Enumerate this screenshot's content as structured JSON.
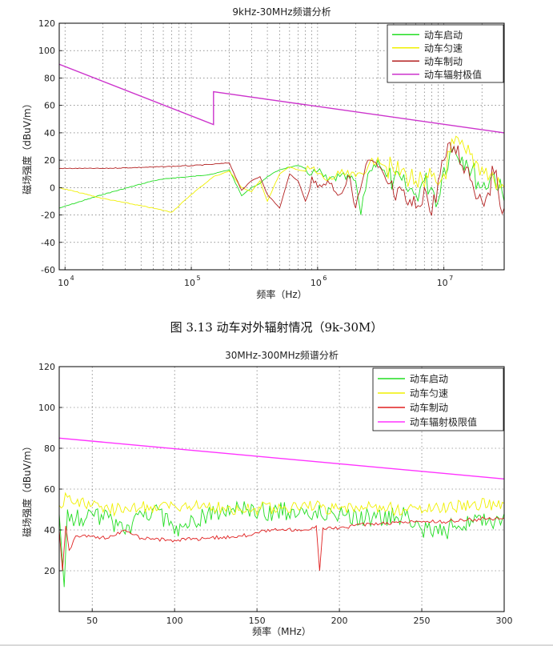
{
  "caption": "图 3.13 动车对外辐射情况（9k-30M）",
  "chart_data": [
    {
      "type": "line",
      "title": "9kHz-30MHz频谱分析",
      "xlabel": "频率（Hz）",
      "ylabel": "磁场强度（dBuV/m）",
      "xscale": "log",
      "xlim": [
        9000,
        30000000
      ],
      "ylim": [
        -60,
        120
      ],
      "yticks": [
        -60,
        -40,
        -20,
        0,
        20,
        40,
        60,
        80,
        100,
        120
      ],
      "xticks": [
        {
          "value": 10000,
          "base": "10",
          "exp": "4"
        },
        {
          "value": 100000,
          "base": "10",
          "exp": "5"
        },
        {
          "value": 1000000,
          "base": "10",
          "exp": "6"
        },
        {
          "value": 10000000,
          "base": "10",
          "exp": "7"
        }
      ],
      "grid": true,
      "legend_position": "top-right",
      "colors": {
        "start": "#22dd22",
        "uniform": "#f0f000",
        "brake": "#b32020",
        "limit": "#cc33cc"
      },
      "series": [
        {
          "name": "动车启动",
          "key": "start",
          "x": [
            9000,
            20000,
            50000,
            70000,
            100000,
            150000,
            200000,
            250000,
            300000,
            350000,
            400000,
            500000,
            600000,
            700000,
            800000,
            900000,
            1000000,
            1200000,
            1500000,
            2000000,
            2200000,
            2500000,
            3000000,
            3500000,
            4000000,
            5000000,
            6000000,
            7000000,
            8000000,
            9000000,
            10000000,
            12000000,
            15000000,
            20000000,
            25000000,
            30000000
          ],
          "y": [
            -15,
            -5,
            5,
            7,
            8,
            10,
            13,
            -6,
            0,
            3,
            8,
            13,
            15,
            16,
            14,
            10,
            12,
            5,
            8,
            5,
            -20,
            10,
            20,
            8,
            5,
            0,
            -5,
            5,
            0,
            -10,
            15,
            30,
            20,
            0,
            10,
            -10
          ]
        },
        {
          "name": "动车匀速",
          "key": "uniform",
          "x": [
            9000,
            20000,
            50000,
            70000,
            100000,
            150000,
            200000,
            250000,
            300000,
            350000,
            400000,
            500000,
            600000,
            700000,
            800000,
            900000,
            1000000,
            1200000,
            1500000,
            2000000,
            2500000,
            3000000,
            3500000,
            4000000,
            5000000,
            6000000,
            7000000,
            8000000,
            9000000,
            10000000,
            12000000,
            15000000,
            20000000,
            25000000,
            30000000
          ],
          "y": [
            0,
            -8,
            -15,
            -18,
            -5,
            8,
            12,
            0,
            -3,
            5,
            -10,
            10,
            15,
            13,
            12,
            14,
            10,
            5,
            10,
            8,
            15,
            22,
            15,
            12,
            10,
            5,
            0,
            8,
            2,
            10,
            32,
            25,
            15,
            5,
            0
          ]
        },
        {
          "name": "动车制动",
          "key": "brake",
          "x": [
            9000,
            20000,
            50000,
            100000,
            150000,
            200000,
            250000,
            300000,
            350000,
            400000,
            500000,
            600000,
            700000,
            800000,
            900000,
            1000000,
            1200000,
            1500000,
            1800000,
            2000000,
            2500000,
            3000000,
            3500000,
            4000000,
            5000000,
            6000000,
            7000000,
            8000000,
            9000000,
            10000000,
            12000000,
            15000000,
            20000000,
            25000000,
            30000000
          ],
          "y": [
            14,
            14,
            15,
            16,
            17,
            18,
            -2,
            5,
            8,
            -5,
            -15,
            10,
            5,
            -10,
            8,
            0,
            5,
            -5,
            8,
            -15,
            20,
            15,
            5,
            -5,
            -10,
            -15,
            0,
            -20,
            5,
            20,
            30,
            15,
            -10,
            10,
            -15
          ]
        },
        {
          "name": "动车辐射极值",
          "key": "limit",
          "x": [
            9000,
            150000,
            150000,
            30000000
          ],
          "y": [
            90,
            46,
            70,
            40
          ]
        }
      ]
    },
    {
      "type": "line",
      "title": "30MHz-300MHz频谱分析",
      "xlabel": "频率（MHz）",
      "ylabel": "磁场强度（dBuV/m）",
      "xlim": [
        30,
        300
      ],
      "ylim": [
        0,
        120
      ],
      "yticks": [
        20,
        40,
        60,
        80,
        100,
        120
      ],
      "xticks": [
        50,
        100,
        150,
        200,
        250,
        300
      ],
      "grid": true,
      "legend_position": "top-right",
      "colors": {
        "start": "#22dd22",
        "uniform": "#f0f000",
        "brake": "#e02020",
        "limit": "#ff33ff"
      },
      "series": [
        {
          "name": "动车启动",
          "key": "start",
          "x": [
            30,
            33,
            35,
            40,
            50,
            60,
            70,
            80,
            90,
            100,
            120,
            140,
            160,
            180,
            200,
            220,
            240,
            250,
            260,
            270,
            280,
            290,
            300
          ],
          "y": [
            48,
            12,
            50,
            45,
            48,
            46,
            38,
            48,
            50,
            38,
            48,
            50,
            49,
            50,
            48,
            46,
            47,
            40,
            38,
            42,
            45,
            44,
            48
          ]
        },
        {
          "name": "动车匀速",
          "key": "uniform",
          "x": [
            30,
            35,
            40,
            50,
            60,
            80,
            100,
            120,
            140,
            160,
            180,
            200,
            220,
            240,
            260,
            280,
            300
          ],
          "y": [
            52,
            56,
            53,
            52,
            50,
            51,
            52,
            51,
            50,
            51,
            52,
            50,
            51,
            50,
            51,
            52,
            53
          ]
        },
        {
          "name": "动车制动",
          "key": "brake",
          "x": [
            30,
            32,
            34,
            36,
            40,
            50,
            60,
            70,
            80,
            100,
            120,
            140,
            160,
            180,
            186,
            188,
            190,
            200,
            220,
            240,
            260,
            280,
            300
          ],
          "y": [
            40,
            20,
            42,
            30,
            37,
            37,
            36,
            40,
            36,
            35,
            36,
            37,
            40,
            40,
            42,
            20,
            41,
            41,
            43,
            44,
            44,
            45,
            46
          ]
        },
        {
          "name": "动车辐射极限值",
          "key": "limit",
          "x": [
            30,
            300
          ],
          "y": [
            85,
            65
          ]
        }
      ]
    }
  ]
}
